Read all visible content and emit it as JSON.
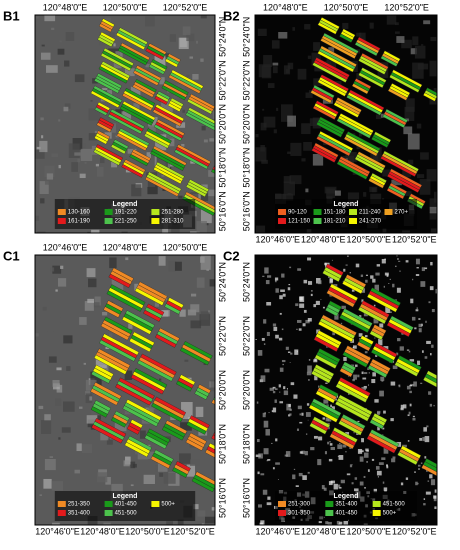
{
  "panels": [
    {
      "label": "B1",
      "background": "gray",
      "x_labels": [
        "120°48'0\"E",
        "120°50'0\"E",
        "120°52'0\"E"
      ],
      "x_labels_side": "top",
      "y_labels": [
        "50°24'0\"N",
        "50°22'0\"N",
        "50°20'0\"N",
        "50°18'0\"N",
        "50°16'0\"N"
      ],
      "y_labels_side": "right",
      "legend": {
        "title": "Legend",
        "items": [
          {
            "label": "130-160",
            "color": "#f08a24"
          },
          {
            "label": "161-190",
            "color": "#e31a1c"
          },
          {
            "label": "191-220",
            "color": "#1a9a1a"
          },
          {
            "label": "221-250",
            "color": "#4cc24c"
          },
          {
            "label": "251-280",
            "color": "#b5e61d"
          },
          {
            "label": "281-310",
            "color": "#f5f500"
          }
        ]
      }
    },
    {
      "label": "B2",
      "background": "black",
      "x_labels": [
        "120°48'0\"E",
        "120°50'0\"E",
        "120°52'0\"E"
      ],
      "x_labels_side": "top",
      "x_labels_bottom": [
        "120°46'0\"E",
        "120°48'0\"E",
        "120°50'0\"E",
        "120°52'0\"E"
      ],
      "y_labels": [
        "50°24'0\"N",
        "50°22'0\"N",
        "50°20'0\"N",
        "50°18'0\"N",
        "50°16'0\"N"
      ],
      "y_labels_side": "left",
      "legend": {
        "title": "Legend",
        "items": [
          {
            "label": "90-120",
            "color": "#f06020"
          },
          {
            "label": "121-150",
            "color": "#e31a1c"
          },
          {
            "label": "151-180",
            "color": "#1a9a1a"
          },
          {
            "label": "181-210",
            "color": "#4cc24c"
          },
          {
            "label": "211-240",
            "color": "#b5e61d"
          },
          {
            "label": "241-270",
            "color": "#f5f500"
          },
          {
            "label": "270+",
            "color": "#f0a020"
          }
        ]
      }
    },
    {
      "label": "C1",
      "background": "gray",
      "x_labels": [
        "120°46'0\"E",
        "120°48'0\"E",
        "120°50'0\"E"
      ],
      "x_labels_side": "top",
      "x_labels_bottom": [
        "120°46'0\"E",
        "120°48'0\"E",
        "120°50'0\"E",
        "120°52'0\"E"
      ],
      "y_labels": [
        "50°24'0\"N",
        "50°22'0\"N",
        "50°20'0\"N",
        "50°18'0\"N",
        "50°16'0\"N"
      ],
      "y_labels_side": "right",
      "legend": {
        "title": "Legend",
        "items": [
          {
            "label": "251-350",
            "color": "#f08a24"
          },
          {
            "label": "351-400",
            "color": "#e31a1c"
          },
          {
            "label": "401-450",
            "color": "#1a9a1a"
          },
          {
            "label": "451-500",
            "color": "#4cc24c"
          },
          {
            "label": "500+",
            "color": "#f5f500"
          }
        ]
      }
    },
    {
      "label": "C2",
      "background": "speckled",
      "x_labels_bottom": [
        "120°46'0\"E",
        "120°48'0\"E",
        "120°50'0\"E",
        "120°52'0\"E"
      ],
      "y_labels": [
        "50°24'0\"N",
        "50°22'0\"N",
        "50°20'0\"N",
        "50°18'0\"N",
        "50°16'0\"N"
      ],
      "y_labels_side": "left",
      "legend": {
        "title": "Legend",
        "items": [
          {
            "label": "251-300",
            "color": "#f08a24"
          },
          {
            "label": "301-350",
            "color": "#e31a1c"
          },
          {
            "label": "351-400",
            "color": "#1a9a1a"
          },
          {
            "label": "401-450",
            "color": "#4cc24c"
          },
          {
            "label": "451-500",
            "color": "#b5e61d"
          },
          {
            "label": "500+",
            "color": "#f5f500"
          }
        ]
      }
    }
  ]
}
